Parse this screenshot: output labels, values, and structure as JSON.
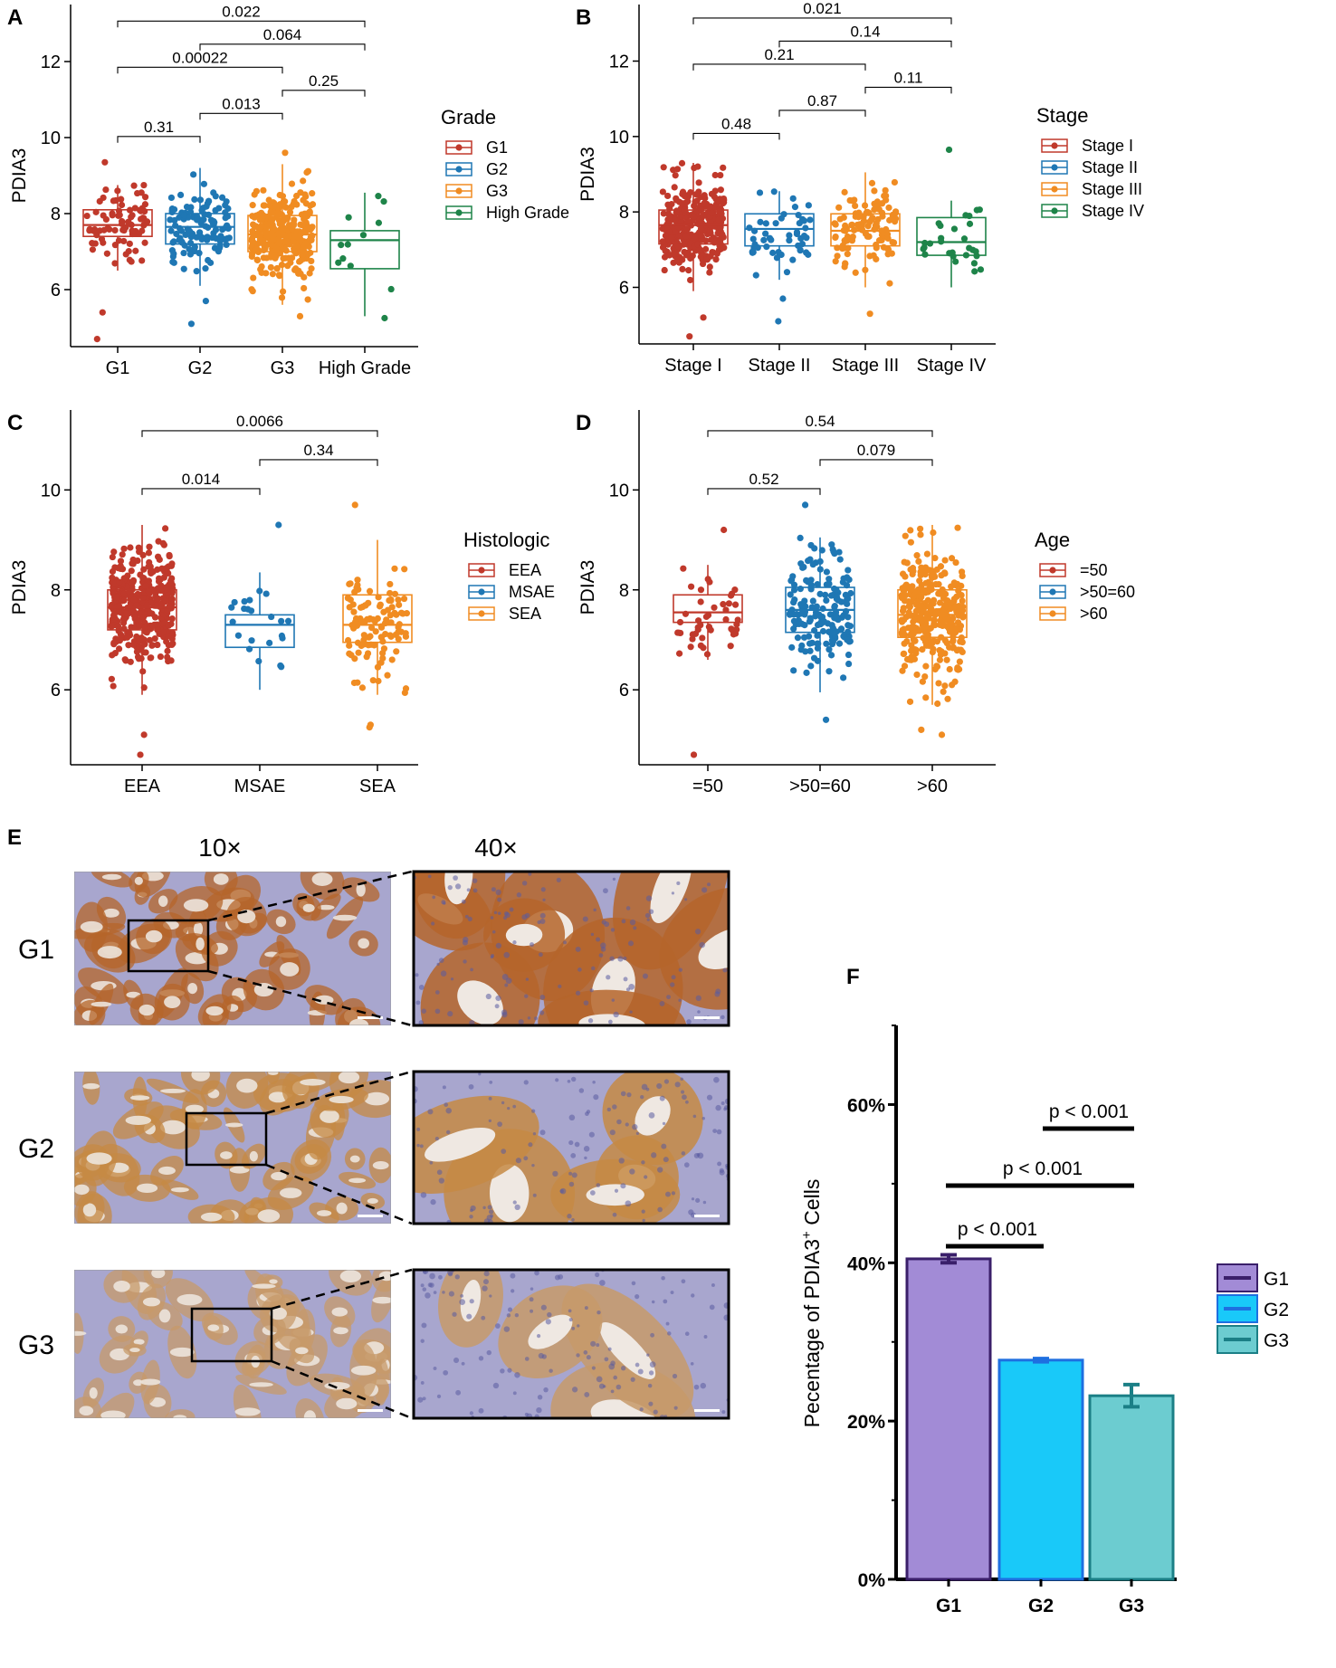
{
  "panels": [
    {
      "letter": "A",
      "ylabel": "PDIA3",
      "yticks": [
        6,
        8,
        10,
        12
      ],
      "ylim": [
        4.5,
        13.5
      ],
      "legend_title": "Grade",
      "groups": [
        {
          "name": "G1",
          "legend": "G1",
          "color": "#C0392B",
          "q1": 7.4,
          "median": 7.7,
          "q3": 8.1,
          "wlo": 6.5,
          "whi": 8.75,
          "n": 80,
          "sd": 0.5,
          "outliers": [
            5.4,
            4.7,
            9.35
          ]
        },
        {
          "name": "G2",
          "legend": "G2",
          "color": "#1F77B4",
          "q1": 7.2,
          "median": 7.65,
          "q3": 8.0,
          "wlo": 6.1,
          "whi": 9.2,
          "n": 120,
          "sd": 0.5,
          "outliers": [
            5.1,
            5.7
          ]
        },
        {
          "name": "G3",
          "legend": "G3",
          "color": "#F08C22",
          "q1": 7.0,
          "median": 7.45,
          "q3": 7.95,
          "wlo": 5.6,
          "whi": 9.3,
          "n": 300,
          "sd": 0.6,
          "outliers": [
            5.3,
            9.6
          ]
        },
        {
          "name": "High Grade",
          "legend": "High Grade",
          "color": "#1E8449",
          "q1": 6.55,
          "median": 7.3,
          "q3": 7.55,
          "wlo": 5.3,
          "whi": 8.55,
          "n": 11,
          "sd": 0.6,
          "outliers": [
            5.25
          ]
        }
      ],
      "comparisons": [
        {
          "from": 0,
          "to": 1,
          "p": "0.31"
        },
        {
          "from": 0,
          "to": 2,
          "p": "0.00022"
        },
        {
          "from": 0,
          "to": 3,
          "p": "0.022"
        },
        {
          "from": 1,
          "to": 2,
          "p": "0.013"
        },
        {
          "from": 1,
          "to": 3,
          "p": "0.064"
        },
        {
          "from": 2,
          "to": 3,
          "p": "0.25"
        }
      ]
    },
    {
      "letter": "B",
      "ylabel": "PDIA3",
      "yticks": [
        6,
        8,
        10,
        12
      ],
      "ylim": [
        4.5,
        13.5
      ],
      "legend_title": "Stage",
      "groups": [
        {
          "name": "Stage I",
          "legend": "Stage I",
          "color": "#C0392B",
          "q1": 7.15,
          "median": 7.65,
          "q3": 8.05,
          "wlo": 5.9,
          "whi": 9.3,
          "n": 330,
          "sd": 0.6,
          "outliers": [
            4.7,
            5.2
          ]
        },
        {
          "name": "Stage II",
          "legend": "Stage II",
          "color": "#1F77B4",
          "q1": 7.1,
          "median": 7.55,
          "q3": 7.95,
          "wlo": 6.2,
          "whi": 8.55,
          "n": 50,
          "sd": 0.55,
          "outliers": [
            5.1,
            5.7
          ]
        },
        {
          "name": "Stage III",
          "legend": "Stage III",
          "color": "#F08C22",
          "q1": 7.1,
          "median": 7.5,
          "q3": 7.95,
          "wlo": 6.0,
          "whi": 9.05,
          "n": 120,
          "sd": 0.55,
          "outliers": [
            5.3
          ]
        },
        {
          "name": "Stage IV",
          "legend": "Stage IV",
          "color": "#1E8449",
          "q1": 6.85,
          "median": 7.2,
          "q3": 7.85,
          "wlo": 6.0,
          "whi": 8.3,
          "n": 28,
          "sd": 0.55,
          "outliers": [
            9.65
          ]
        }
      ],
      "comparisons": [
        {
          "from": 0,
          "to": 1,
          "p": "0.48"
        },
        {
          "from": 0,
          "to": 2,
          "p": "0.21"
        },
        {
          "from": 0,
          "to": 3,
          "p": "0.021"
        },
        {
          "from": 1,
          "to": 2,
          "p": "0.87"
        },
        {
          "from": 1,
          "to": 3,
          "p": "0.14"
        },
        {
          "from": 2,
          "to": 3,
          "p": "0.11"
        }
      ]
    },
    {
      "letter": "C",
      "ylabel": "PDIA3",
      "yticks": [
        6,
        8,
        10
      ],
      "ylim": [
        4.5,
        11.6
      ],
      "legend_title": "Histologic",
      "groups": [
        {
          "name": "EEA",
          "legend": "EEA",
          "color": "#C0392B",
          "q1": 7.2,
          "median": 7.65,
          "q3": 8.0,
          "wlo": 5.9,
          "whi": 9.3,
          "n": 390,
          "sd": 0.6,
          "outliers": [
            5.1,
            4.7
          ]
        },
        {
          "name": "MSAE",
          "legend": "MSAE",
          "color": "#1F77B4",
          "q1": 6.85,
          "median": 7.3,
          "q3": 7.5,
          "wlo": 6.0,
          "whi": 8.35,
          "n": 22,
          "sd": 0.5,
          "outliers": [
            9.3
          ]
        },
        {
          "name": "SEA",
          "legend": "SEA",
          "color": "#F08C22",
          "q1": 6.95,
          "median": 7.3,
          "q3": 7.9,
          "wlo": 5.9,
          "whi": 9.0,
          "n": 110,
          "sd": 0.6,
          "outliers": [
            5.3,
            5.25,
            9.7
          ]
        }
      ],
      "comparisons": [
        {
          "from": 0,
          "to": 1,
          "p": "0.014"
        },
        {
          "from": 0,
          "to": 2,
          "p": "0.0066"
        },
        {
          "from": 1,
          "to": 2,
          "p": "0.34"
        }
      ]
    },
    {
      "letter": "D",
      "ylabel": "PDIA3",
      "yticks": [
        6,
        8,
        10
      ],
      "ylim": [
        4.5,
        11.6
      ],
      "legend_title": "Age",
      "groups": [
        {
          "name": "=50",
          "legend": "=50",
          "color": "#C0392B",
          "q1": 7.35,
          "median": 7.55,
          "q3": 7.9,
          "wlo": 6.6,
          "whi": 8.5,
          "n": 45,
          "sd": 0.45,
          "outliers": [
            9.2,
            4.7
          ]
        },
        {
          "name": ">50=60",
          "legend": ">50=60",
          "color": "#1F77B4",
          "q1": 7.15,
          "median": 7.6,
          "q3": 8.05,
          "wlo": 5.95,
          "whi": 9.05,
          "n": 170,
          "sd": 0.6,
          "outliers": [
            5.4,
            9.7
          ]
        },
        {
          "name": ">60",
          "legend": ">60",
          "color": "#F08C22",
          "q1": 7.05,
          "median": 7.5,
          "q3": 8.0,
          "wlo": 5.7,
          "whi": 9.3,
          "n": 330,
          "sd": 0.6,
          "outliers": [
            5.2,
            5.1
          ]
        }
      ],
      "comparisons": [
        {
          "from": 0,
          "to": 1,
          "p": "0.52"
        },
        {
          "from": 0,
          "to": 2,
          "p": "0.54"
        },
        {
          "from": 1,
          "to": 2,
          "p": "0.079"
        }
      ]
    }
  ],
  "panel_e": {
    "letter": "E",
    "mag_low": "10×",
    "mag_high": "40×",
    "rows": [
      {
        "label": "G1",
        "stain": "#B5652A"
      },
      {
        "label": "G2",
        "stain": "#C58A44"
      },
      {
        "label": "G3",
        "stain": "#C79A6A"
      }
    ],
    "tissue_bg": "#A8A6CE"
  },
  "chart_data": {
    "type": "bar",
    "title": "",
    "ylabel": "Pecentage of PDIA3",
    "ylabel_sup": "+",
    "ylabel_tail": " Cells",
    "categories": [
      "G1",
      "G2",
      "G3"
    ],
    "values": [
      40.5,
      27.7,
      23.2
    ],
    "errors": [
      0.5,
      0.2,
      1.4
    ],
    "yticks": [
      "0%",
      "20%",
      "40%",
      "60%"
    ],
    "ylim": [
      0,
      70
    ],
    "colors": [
      "#A28BD6",
      "#19C9F9",
      "#6CCCD0"
    ],
    "edges": [
      "#3A1F6A",
      "#1E6FE0",
      "#1B7F86"
    ],
    "legend": [
      "G1",
      "G2",
      "G3"
    ],
    "comparisons": [
      {
        "from": 0,
        "to": 1,
        "p": "p < 0.001"
      },
      {
        "from": 0,
        "to": 2,
        "p": "p < 0.001"
      },
      {
        "from": 1,
        "to": 2,
        "p": "p < 0.001"
      }
    ],
    "letter": "F"
  }
}
